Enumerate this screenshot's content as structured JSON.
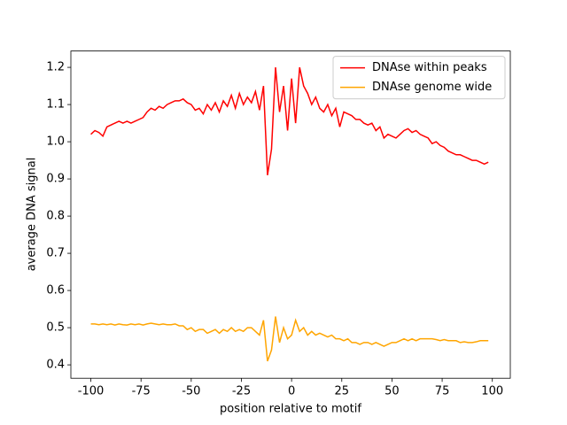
{
  "chart_data": {
    "type": "line",
    "xlabel": "position relative to motif",
    "ylabel": "average DNA signal",
    "x": [
      -100,
      -98,
      -96,
      -94,
      -92,
      -90,
      -88,
      -86,
      -84,
      -82,
      -80,
      -78,
      -76,
      -74,
      -72,
      -70,
      -68,
      -66,
      -64,
      -62,
      -60,
      -58,
      -56,
      -54,
      -52,
      -50,
      -48,
      -46,
      -44,
      -42,
      -40,
      -38,
      -36,
      -34,
      -32,
      -30,
      -28,
      -26,
      -24,
      -22,
      -20,
      -18,
      -16,
      -14,
      -12,
      -10,
      -8,
      -6,
      -4,
      -2,
      0,
      2,
      4,
      6,
      8,
      10,
      12,
      14,
      16,
      18,
      20,
      22,
      24,
      26,
      28,
      30,
      32,
      34,
      36,
      38,
      40,
      42,
      44,
      46,
      48,
      50,
      52,
      54,
      56,
      58,
      60,
      62,
      64,
      66,
      68,
      70,
      72,
      74,
      76,
      78,
      80,
      82,
      84,
      86,
      88,
      90,
      92,
      94,
      96,
      98
    ],
    "series": [
      {
        "name": "DNAse within peaks",
        "color": "#ff0000",
        "values": [
          1.02,
          1.03,
          1.025,
          1.015,
          1.04,
          1.045,
          1.05,
          1.055,
          1.05,
          1.055,
          1.05,
          1.055,
          1.06,
          1.065,
          1.08,
          1.09,
          1.085,
          1.095,
          1.09,
          1.1,
          1.105,
          1.11,
          1.11,
          1.115,
          1.105,
          1.1,
          1.085,
          1.09,
          1.075,
          1.1,
          1.085,
          1.105,
          1.08,
          1.11,
          1.095,
          1.125,
          1.09,
          1.13,
          1.1,
          1.12,
          1.105,
          1.135,
          1.085,
          1.15,
          0.91,
          0.98,
          1.2,
          1.08,
          1.15,
          1.03,
          1.17,
          1.05,
          1.2,
          1.15,
          1.13,
          1.1,
          1.12,
          1.09,
          1.08,
          1.1,
          1.07,
          1.09,
          1.04,
          1.08,
          1.075,
          1.07,
          1.06,
          1.06,
          1.05,
          1.045,
          1.05,
          1.03,
          1.04,
          1.01,
          1.02,
          1.015,
          1.01,
          1.02,
          1.03,
          1.035,
          1.025,
          1.03,
          1.02,
          1.015,
          1.01,
          0.995,
          1.0,
          0.99,
          0.985,
          0.975,
          0.97,
          0.965,
          0.965,
          0.96,
          0.955,
          0.95,
          0.95,
          0.945,
          0.94,
          0.945
        ]
      },
      {
        "name": "DNAse genome wide",
        "color": "#ffa500",
        "values": [
          0.51,
          0.51,
          0.508,
          0.51,
          0.508,
          0.51,
          0.507,
          0.51,
          0.508,
          0.507,
          0.51,
          0.508,
          0.51,
          0.507,
          0.51,
          0.512,
          0.51,
          0.508,
          0.51,
          0.508,
          0.508,
          0.51,
          0.505,
          0.505,
          0.495,
          0.5,
          0.49,
          0.495,
          0.495,
          0.485,
          0.49,
          0.495,
          0.485,
          0.495,
          0.49,
          0.5,
          0.49,
          0.495,
          0.49,
          0.5,
          0.5,
          0.49,
          0.48,
          0.52,
          0.41,
          0.44,
          0.53,
          0.46,
          0.5,
          0.47,
          0.48,
          0.52,
          0.49,
          0.5,
          0.48,
          0.49,
          0.48,
          0.485,
          0.48,
          0.475,
          0.48,
          0.47,
          0.47,
          0.465,
          0.47,
          0.46,
          0.46,
          0.455,
          0.46,
          0.46,
          0.455,
          0.46,
          0.455,
          0.45,
          0.455,
          0.46,
          0.46,
          0.465,
          0.47,
          0.465,
          0.47,
          0.465,
          0.47,
          0.47,
          0.47,
          0.47,
          0.468,
          0.465,
          0.468,
          0.465,
          0.465,
          0.465,
          0.46,
          0.462,
          0.46,
          0.46,
          0.462,
          0.465,
          0.465,
          0.465
        ]
      }
    ],
    "xlim": [
      -109.95,
      108.95
    ],
    "ylim": [
      0.364,
      1.244
    ],
    "xticks": [
      -100,
      -75,
      -50,
      -25,
      0,
      25,
      50,
      75,
      100
    ],
    "yticks": [
      0.4,
      0.5,
      0.6,
      0.7,
      0.8,
      0.9,
      {
        "value": 1,
        "label": "1.0"
      },
      1.1,
      1.2
    ],
    "legend": "upper right"
  }
}
